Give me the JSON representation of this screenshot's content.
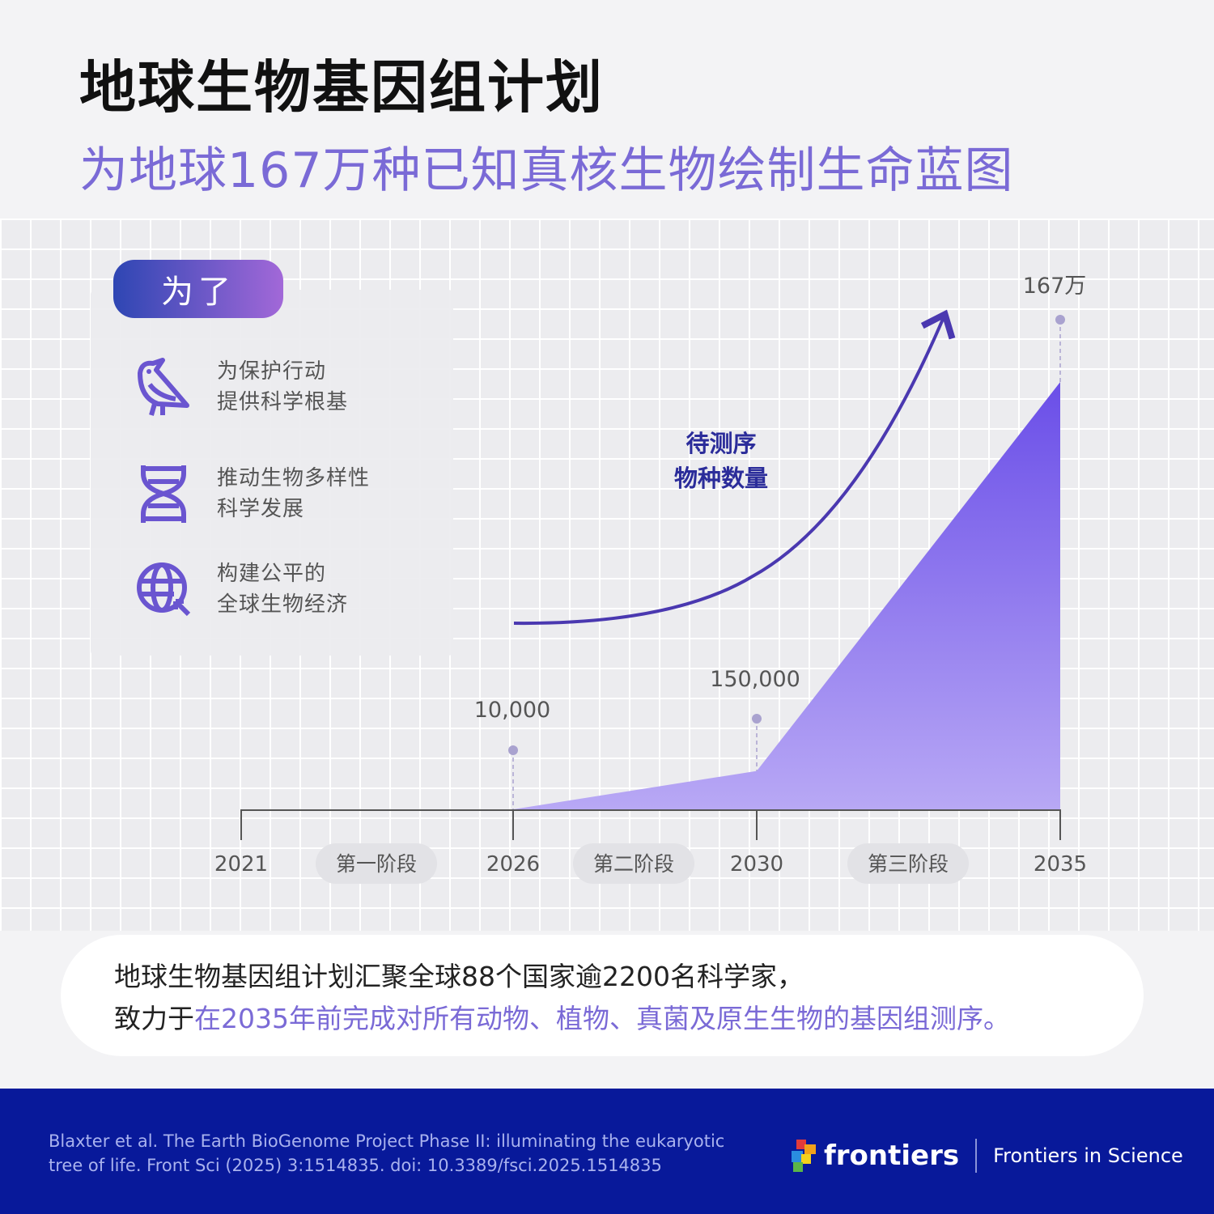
{
  "header": {
    "title": "地球生物基因组计划",
    "subtitle": "为地球167万种已知真核生物绘制生命蓝图"
  },
  "panel": {
    "pill": "为了",
    "items": [
      {
        "icon": "bird-icon",
        "line1": "为保护行动",
        "line2": "提供科学根基"
      },
      {
        "icon": "dna-icon",
        "line1": "推动生物多样性",
        "line2": "科学发展"
      },
      {
        "icon": "globe-icon",
        "line1": "构建公平的",
        "line2": "全球生物经济"
      }
    ]
  },
  "chart_data": {
    "type": "area",
    "title": "",
    "annotation": "待测序\n物种数量",
    "annotation_lines": [
      "待测序",
      "物种数量"
    ],
    "x_ticks": [
      "2021",
      "2026",
      "2030",
      "2035"
    ],
    "phases": [
      "第一阶段",
      "第二阶段",
      "第三阶段"
    ],
    "points": [
      {
        "x": 2026,
        "y": 10000,
        "label": "10,000"
      },
      {
        "x": 2030,
        "y": 150000,
        "label": "150,000"
      },
      {
        "x": 2035,
        "y": 1670000,
        "label": "167万"
      }
    ],
    "colors": {
      "area_top": "#6a4ee8",
      "area_bottom": "#b8a8f5",
      "arrow": "#4a38b0",
      "dot": "#a9a2cf"
    }
  },
  "caption": {
    "line1": "地球生物基因组计划汇聚全球88个国家逾2200名科学家，",
    "line2_plain": "致力于",
    "line2_highlight": "在2035年前完成对所有动物、植物、真菌及原生生物的基因组测序。"
  },
  "footer": {
    "citation_line1": "Blaxter et al. The Earth BioGenome Project Phase II: illuminating the eukaryotic",
    "citation_line2": "tree of life. Front Sci (2025) 3:1514835. doi: 10.3389/fsci.2025.1514835",
    "logo": "frontiers",
    "journal": "Frontiers in Science"
  }
}
